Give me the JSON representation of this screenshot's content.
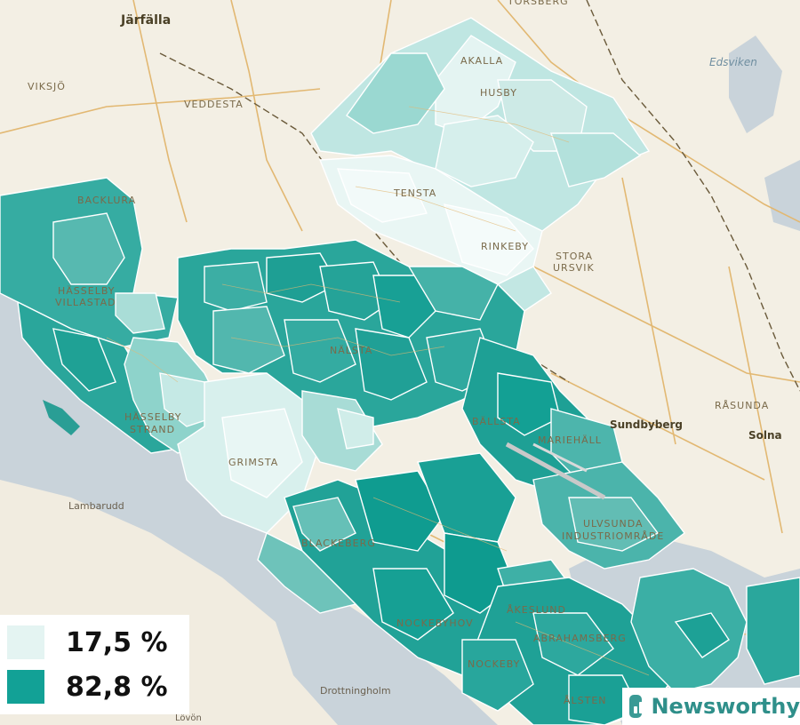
{
  "legend": {
    "items": [
      {
        "label": "17,5 %",
        "color": "#e4f4f2"
      },
      {
        "label": "82,8 %",
        "color": "#12a196"
      }
    ]
  },
  "brand": {
    "name": "Newsworthy",
    "icon": "newsworthy-bar-chart-icon"
  },
  "places": {
    "jarfalla": "Järfälla",
    "viksjo": "VIKSJÖ",
    "veddesta": "VEDDESTA",
    "akalla": "AKALLA",
    "husby": "HUSBY",
    "torsberg": "TORSBERG",
    "edsviken": "Edsviken",
    "tensta": "TENSTA",
    "rinkeby": "RINKEBY",
    "stora": "STORA",
    "ursvik": "URSVIK",
    "backlura": "BACKLURA",
    "hasselby_v1": "HÄSSELBY",
    "hasselby_v2": "VILLASTAD",
    "nalsta": "NÄLSTA",
    "ballsta": "BÄLLSTA",
    "sundbyberg": "Sundbyberg",
    "rasunda": "RÅSUNDA",
    "solna": "Solna",
    "hasselby_s1": "HÄSSELBY",
    "hasselby_s2": "STRAND",
    "grimsta": "GRIMSTA",
    "mariehall": "MARIEHÄLL",
    "lambarudd": "Lambarudd",
    "ulvsunda1": "ULVSUNDA",
    "ulvsunda2": "INDUSTRIOMRÅDE",
    "blackeberg": "BLACKEBERG",
    "akeslund": "ÅKESLUND",
    "nockebyhov": "NOCKEBYHOV",
    "abrahamsberg": "ABRAHAMSBERG",
    "nockeby": "NOCKEBY",
    "drottningholm": "Drottningholm",
    "alsten": "ÅLSTEN",
    "loven": "Lövön"
  },
  "colors": {
    "land": "#f3efe4",
    "water": "#c9d3da",
    "road": "#e2b872",
    "light": "#e4f4f2",
    "dark": "#12a196"
  }
}
